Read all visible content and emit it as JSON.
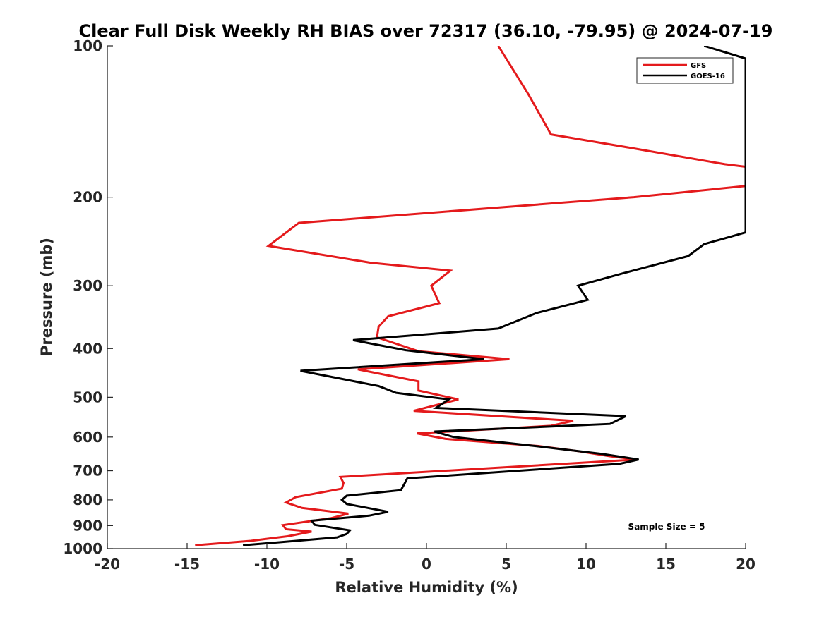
{
  "chart_data": {
    "type": "line",
    "title": "Clear Full Disk Weekly RH BIAS over 72317 (36.10, -79.95) @ 2024-07-19",
    "xlabel": "Relative Humidity (%)",
    "ylabel": "Pressure (mb)",
    "xlim": [
      -20,
      20
    ],
    "ylim": [
      100,
      1000
    ],
    "yscale": "log",
    "y_reversed": true,
    "grid": false,
    "legend_position": "top-right",
    "x_ticks": [
      "-20",
      "-15",
      "-10",
      "-5",
      "0",
      "5",
      "10",
      "15",
      "20"
    ],
    "y_ticks": [
      {
        "value": 100,
        "label": "100"
      },
      {
        "value": 200,
        "label": "200"
      },
      {
        "value": 300,
        "label": "300"
      },
      {
        "value": 400,
        "label": "400"
      },
      {
        "value": 500,
        "label": "500"
      },
      {
        "value": 600,
        "label": "600"
      },
      {
        "value": 700,
        "label": "700"
      },
      {
        "value": 800,
        "label": "800"
      },
      {
        "value": 900,
        "label": "900"
      },
      {
        "value": 1000,
        "label": "1000"
      }
    ],
    "annotation": "Sample Size = 5",
    "series": [
      {
        "name": "GFS",
        "color": "#e41a1c",
        "points": [
          [
            4.5,
            100
          ],
          [
            6.4,
            125
          ],
          [
            7.8,
            150
          ],
          [
            13.0,
            160
          ],
          [
            18.7,
            172
          ],
          [
            20,
            174
          ],
          [
            20,
            190
          ],
          [
            13.0,
            200
          ],
          [
            -8.0,
            225
          ],
          [
            -9.9,
            250
          ],
          [
            -3.5,
            270
          ],
          [
            1.5,
            280
          ],
          [
            0.3,
            300
          ],
          [
            0.8,
            325
          ],
          [
            -2.4,
            345
          ],
          [
            -3.0,
            362
          ],
          [
            -3.1,
            380
          ],
          [
            -0.5,
            405
          ],
          [
            5.2,
            420
          ],
          [
            -4.3,
            440
          ],
          [
            -0.5,
            465
          ],
          [
            -0.5,
            485
          ],
          [
            2.0,
            505
          ],
          [
            -0.8,
            532
          ],
          [
            9.2,
            557
          ],
          [
            7.8,
            570
          ],
          [
            -0.6,
            590
          ],
          [
            1.2,
            605
          ],
          [
            7.0,
            625
          ],
          [
            9.5,
            640
          ],
          [
            11.5,
            655
          ],
          [
            13.2,
            665
          ],
          [
            -5.4,
            720
          ],
          [
            -5.2,
            740
          ],
          [
            -5.3,
            760
          ],
          [
            -8.2,
            790
          ],
          [
            -8.8,
            810
          ],
          [
            -7.8,
            830
          ],
          [
            -4.9,
            852
          ],
          [
            -6.0,
            870
          ],
          [
            -9.0,
            898
          ],
          [
            -8.8,
            915
          ],
          [
            -7.2,
            925
          ],
          [
            -8.7,
            945
          ],
          [
            -11.0,
            965
          ],
          [
            -14.5,
            985
          ]
        ]
      },
      {
        "name": "GOES-16",
        "color": "#000000",
        "points": [
          [
            17.4,
            100
          ],
          [
            20,
            106
          ],
          [
            20,
            235
          ],
          [
            17.4,
            248
          ],
          [
            16.4,
            262
          ],
          [
            12.4,
            283
          ],
          [
            9.5,
            300
          ],
          [
            10.1,
            320
          ],
          [
            6.9,
            340
          ],
          [
            4.5,
            365
          ],
          [
            -4.6,
            385
          ],
          [
            -1.3,
            403
          ],
          [
            3.6,
            420
          ],
          [
            -7.9,
            443
          ],
          [
            -3.0,
            475
          ],
          [
            -1.9,
            490
          ],
          [
            1.4,
            505
          ],
          [
            0.6,
            525
          ],
          [
            12.5,
            545
          ],
          [
            11.5,
            565
          ],
          [
            0.5,
            585
          ],
          [
            1.7,
            600
          ],
          [
            6.8,
            625
          ],
          [
            11.0,
            648
          ],
          [
            13.3,
            665
          ],
          [
            12.1,
            678
          ],
          [
            -1.2,
            725
          ],
          [
            -1.4,
            745
          ],
          [
            -1.6,
            765
          ],
          [
            -5.0,
            785
          ],
          [
            -5.3,
            800
          ],
          [
            -5.0,
            815
          ],
          [
            -2.4,
            845
          ],
          [
            -3.6,
            860
          ],
          [
            -7.2,
            880
          ],
          [
            -7.0,
            897
          ],
          [
            -4.8,
            920
          ],
          [
            -5.0,
            935
          ],
          [
            -5.6,
            950
          ],
          [
            -11.5,
            985
          ]
        ]
      }
    ]
  }
}
